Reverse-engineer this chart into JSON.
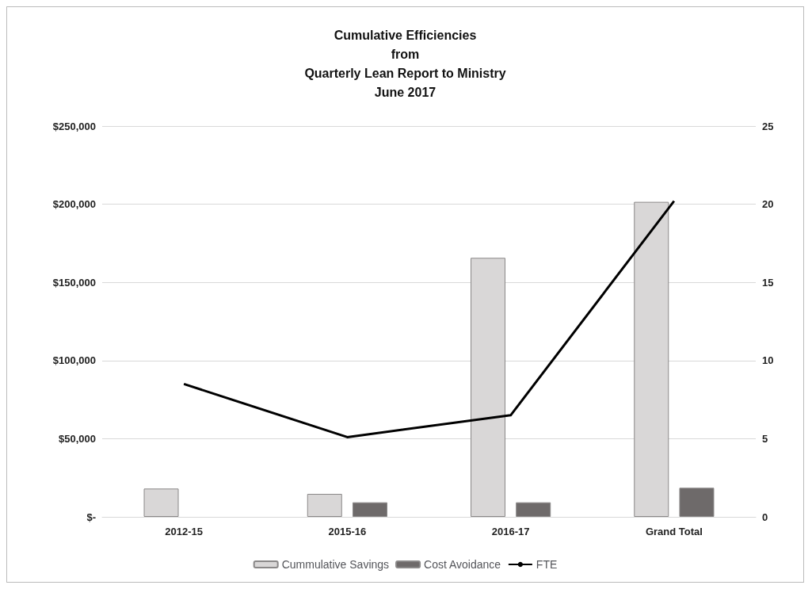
{
  "chart_data": {
    "type": "bar",
    "title": "Cumulative Efficiencies\nfrom\nQuarterly Lean Report to Ministry\nJune 2017",
    "categories": [
      "2012-15",
      "2015-16",
      "2016-17",
      "Grand Total"
    ],
    "series": [
      {
        "name": "Cummulative Savings",
        "color": "#d9d7d7",
        "values": [
          18100,
          14700,
          165700,
          201500
        ]
      },
      {
        "name": "Cost Avoidance",
        "color": "#6e6a6a",
        "values": [
          null,
          9300,
          9300,
          18600
        ]
      },
      {
        "name": "FTE",
        "type": "line",
        "axis": "y2",
        "color": "#000000",
        "values": [
          8.5,
          5.1,
          6.5,
          20.2
        ]
      }
    ],
    "ylim": [
      0,
      250000
    ],
    "yticks": [
      {
        "value": 0,
        "label": "$-"
      },
      {
        "value": 50000,
        "label": "$50,000"
      },
      {
        "value": 100000,
        "label": "$100,000"
      },
      {
        "value": 150000,
        "label": "$150,000"
      },
      {
        "value": 200000,
        "label": "$200,000"
      },
      {
        "value": 250000,
        "label": "$250,000"
      }
    ],
    "y2lim": [
      0,
      25
    ],
    "y2ticks": [
      0,
      5,
      10,
      15,
      20,
      25
    ],
    "grid": "y",
    "legend": "bottom",
    "marker": "none"
  }
}
